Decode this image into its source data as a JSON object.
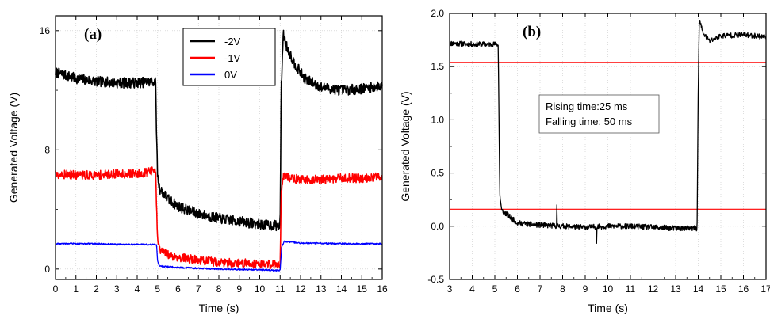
{
  "chart_data": [
    {
      "type": "line",
      "panel_label": "(a)",
      "title": "",
      "xlabel": "Time (s)",
      "ylabel": "Generated Voltage (V)",
      "xlim": [
        0,
        16
      ],
      "ylim": [
        -0.7,
        17
      ],
      "x_ticks": [
        0,
        1,
        2,
        3,
        4,
        5,
        6,
        7,
        8,
        9,
        10,
        11,
        12,
        13,
        14,
        15,
        16
      ],
      "y_ticks": [
        0,
        8,
        16
      ],
      "grid": true,
      "legend_position": "top-center",
      "series": [
        {
          "name": "-2V",
          "color": "#000000",
          "x": [
            0,
            1,
            2,
            3,
            4,
            4.9,
            4.95,
            5.0,
            5.1,
            5.5,
            6,
            7,
            8,
            9,
            10,
            11.0,
            11.05,
            11.15,
            11.3,
            11.7,
            12.2,
            13,
            14,
            15,
            16
          ],
          "y": [
            13.2,
            12.8,
            12.6,
            12.5,
            12.5,
            12.6,
            9.0,
            6.2,
            5.4,
            4.7,
            4.2,
            3.7,
            3.4,
            3.2,
            3.0,
            2.9,
            12.0,
            15.8,
            15.0,
            13.8,
            12.8,
            12.2,
            12.0,
            12.1,
            12.3
          ],
          "noise": 0.35
        },
        {
          "name": "-1V",
          "color": "#ff0000",
          "x": [
            0,
            1,
            2,
            3,
            4,
            4.9,
            4.95,
            5.0,
            5.1,
            5.5,
            6,
            7,
            8,
            9,
            10,
            11.0,
            11.05,
            11.15,
            11.5,
            12,
            13,
            14,
            15,
            16
          ],
          "y": [
            6.4,
            6.3,
            6.3,
            6.4,
            6.4,
            6.6,
            4.0,
            2.0,
            1.3,
            0.95,
            0.8,
            0.6,
            0.45,
            0.4,
            0.35,
            0.3,
            5.0,
            6.3,
            6.1,
            6.0,
            6.0,
            6.1,
            6.1,
            6.2
          ],
          "noise": 0.3
        },
        {
          "name": "0V",
          "color": "#0000ff",
          "x": [
            0,
            1,
            2,
            3,
            4,
            4.95,
            5.0,
            5.1,
            6,
            8,
            10,
            11.0,
            11.08,
            11.2,
            12,
            14,
            16
          ],
          "y": [
            1.7,
            1.7,
            1.7,
            1.65,
            1.65,
            1.65,
            0.5,
            0.2,
            0.1,
            0.0,
            -0.05,
            -0.1,
            1.5,
            1.85,
            1.75,
            1.7,
            1.7
          ],
          "noise": 0.05
        }
      ]
    },
    {
      "type": "line",
      "panel_label": "(b)",
      "title": "",
      "xlabel": "Time (s)",
      "ylabel": "Generated Voltage (V)",
      "xlim": [
        3,
        17
      ],
      "ylim": [
        -0.5,
        2.0
      ],
      "x_ticks": [
        3,
        4,
        5,
        6,
        7,
        8,
        9,
        10,
        11,
        12,
        13,
        14,
        15,
        16,
        17
      ],
      "y_ticks": [
        -0.5,
        0.0,
        0.5,
        1.0,
        1.5,
        2.0
      ],
      "y_tick_labels": [
        "-0.5",
        "0.0",
        "0.5",
        "1.0",
        "1.5",
        "2.0"
      ],
      "grid": true,
      "reference_lines": [
        {
          "y": 1.54,
          "color": "#ff0000"
        },
        {
          "y": 0.16,
          "color": "#ff0000"
        }
      ],
      "annotation": [
        "Rising time:25 ms",
        "Falling time: 50 ms"
      ],
      "series": [
        {
          "name": "",
          "color": "#000000",
          "x": [
            3,
            4,
            5,
            5.15,
            5.22,
            5.3,
            5.6,
            6.0,
            7,
            8,
            9,
            10,
            11,
            12,
            13,
            13.95,
            14.0,
            14.05,
            14.2,
            14.5,
            15,
            16,
            17
          ],
          "y": [
            1.72,
            1.71,
            1.71,
            1.71,
            0.3,
            0.15,
            0.1,
            0.03,
            0.01,
            0.0,
            -0.01,
            0.0,
            0.0,
            -0.01,
            -0.02,
            -0.02,
            1.3,
            1.95,
            1.82,
            1.74,
            1.79,
            1.8,
            1.78
          ],
          "noise": 0.025,
          "spikes": [
            {
              "x": 7.75,
              "y": 0.2
            },
            {
              "x": 9.5,
              "y": -0.16
            }
          ]
        }
      ]
    }
  ]
}
